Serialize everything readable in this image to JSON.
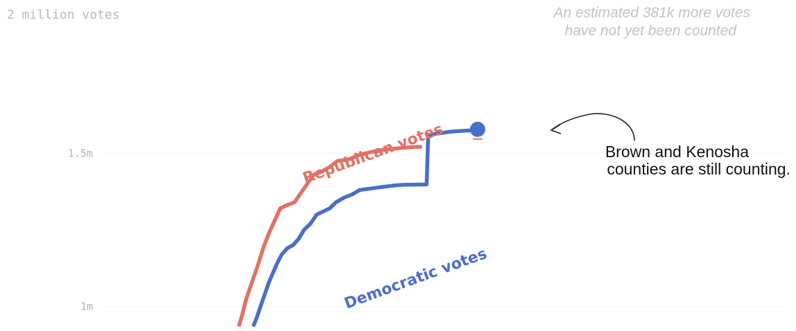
{
  "chart_data": {
    "type": "line",
    "y_axis_title": "2 million votes",
    "y_ticks": [
      {
        "value": 1500000,
        "label": "1.5m"
      },
      {
        "value": 1000000,
        "label": "1m"
      }
    ],
    "ylim": [
      920000,
      2000000
    ],
    "xlim": [
      0,
      1
    ],
    "note_lines": [
      "An estimated 381k more votes",
      "have not yet been counted"
    ],
    "callout_lines": [
      "Brown and Kenosha",
      "counties are still counting."
    ],
    "series": [
      {
        "name": "Republican votes",
        "color": "#e07266",
        "points": [
          [
            0.3,
            0.935
          ],
          [
            0.304,
            0.97
          ],
          [
            0.307,
            1.0
          ],
          [
            0.31,
            1.03
          ],
          [
            0.314,
            1.06
          ],
          [
            0.318,
            1.09
          ],
          [
            0.322,
            1.12
          ],
          [
            0.327,
            1.16
          ],
          [
            0.332,
            1.2
          ],
          [
            0.338,
            1.24
          ],
          [
            0.345,
            1.28
          ],
          [
            0.352,
            1.32
          ],
          [
            0.36,
            1.33
          ],
          [
            0.37,
            1.34
          ],
          [
            0.378,
            1.37
          ],
          [
            0.386,
            1.4
          ],
          [
            0.394,
            1.43
          ],
          [
            0.404,
            1.44
          ],
          [
            0.414,
            1.455
          ],
          [
            0.424,
            1.475
          ],
          [
            0.438,
            1.48
          ],
          [
            0.452,
            1.495
          ],
          [
            0.468,
            1.505
          ],
          [
            0.484,
            1.512
          ],
          [
            0.496,
            1.515
          ],
          [
            0.506,
            1.518
          ],
          [
            0.52,
            1.52
          ],
          [
            0.53,
            1.521
          ]
        ]
      },
      {
        "name": "Democratic votes",
        "color": "#4a6ec9",
        "points": [
          [
            0.318,
            0.935
          ],
          [
            0.322,
            0.96
          ],
          [
            0.326,
            0.99
          ],
          [
            0.33,
            1.02
          ],
          [
            0.334,
            1.05
          ],
          [
            0.338,
            1.08
          ],
          [
            0.343,
            1.11
          ],
          [
            0.348,
            1.14
          ],
          [
            0.354,
            1.17
          ],
          [
            0.361,
            1.19
          ],
          [
            0.368,
            1.2
          ],
          [
            0.375,
            1.22
          ],
          [
            0.382,
            1.25
          ],
          [
            0.39,
            1.27
          ],
          [
            0.398,
            1.3
          ],
          [
            0.406,
            1.31
          ],
          [
            0.414,
            1.32
          ],
          [
            0.422,
            1.34
          ],
          [
            0.432,
            1.355
          ],
          [
            0.442,
            1.365
          ],
          [
            0.452,
            1.38
          ],
          [
            0.466,
            1.385
          ],
          [
            0.48,
            1.39
          ],
          [
            0.496,
            1.395
          ],
          [
            0.506,
            1.397
          ],
          [
            0.536,
            1.398
          ],
          [
            0.538,
            1.56
          ],
          [
            0.552,
            1.565
          ],
          [
            0.565,
            1.57
          ],
          [
            0.58,
            1.573
          ],
          [
            0.595,
            1.575
          ]
        ],
        "end_marker": [
          0.6,
          1.578
        ]
      }
    ]
  }
}
